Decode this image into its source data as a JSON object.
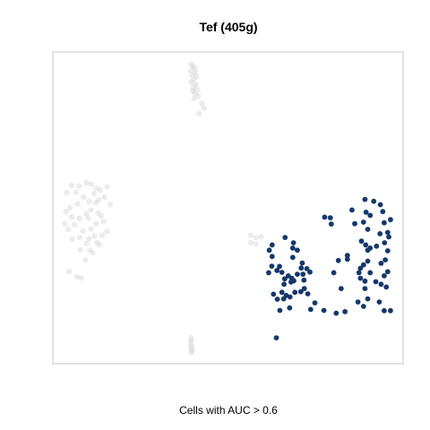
{
  "chart_data": {
    "type": "scatter",
    "title": "Tef (405g)",
    "xlabel": "Cells with AUC > 0.6",
    "ylabel": "",
    "axes_visible": false,
    "grid": false,
    "legend": "none",
    "xlim": [
      0,
      100
    ],
    "ylim": [
      0,
      100
    ],
    "highlight_color": "#15386b",
    "background_color": "#d4d4d4",
    "series": [
      {
        "role": "background",
        "points": [
          [
            39.5,
            96
          ],
          [
            40,
            95.5
          ],
          [
            40.5,
            94.8
          ],
          [
            39.3,
            94
          ],
          [
            40.7,
            93.5
          ],
          [
            39.8,
            92.5
          ],
          [
            41,
            92
          ],
          [
            40.2,
            91.2
          ],
          [
            39.6,
            90.3
          ],
          [
            40.8,
            89.6
          ],
          [
            40.1,
            88.6
          ],
          [
            41.2,
            88
          ],
          [
            39.9,
            87.5
          ],
          [
            40.6,
            86.6
          ],
          [
            41.5,
            85.8
          ],
          [
            40.3,
            85
          ],
          [
            42.5,
            83.5
          ],
          [
            43.2,
            82
          ],
          [
            41.8,
            80.2
          ],
          [
            5.4,
            57.2
          ],
          [
            7.5,
            57
          ],
          [
            9.6,
            58.1
          ],
          [
            11,
            57.6
          ],
          [
            12.6,
            56.3
          ],
          [
            15.5,
            56.8
          ],
          [
            13.5,
            55.6
          ],
          [
            6.6,
            55
          ],
          [
            11.8,
            54.6
          ],
          [
            4,
            54.8
          ],
          [
            8.8,
            53.5
          ],
          [
            14.7,
            53.5
          ],
          [
            13.1,
            52.6
          ],
          [
            10.4,
            52
          ],
          [
            12.3,
            51.7
          ],
          [
            16.4,
            51
          ],
          [
            7.1,
            51.2
          ],
          [
            4.9,
            50
          ],
          [
            3.8,
            48.8
          ],
          [
            10.9,
            49.3
          ],
          [
            9.6,
            48.1
          ],
          [
            12.9,
            48.3
          ],
          [
            13.8,
            47.4
          ],
          [
            5.4,
            47.1
          ],
          [
            10.1,
            46.7
          ],
          [
            7.6,
            46.6
          ],
          [
            14.4,
            45.6
          ],
          [
            3.4,
            44.9
          ],
          [
            6.2,
            44.6
          ],
          [
            12.3,
            44.9
          ],
          [
            10.9,
            43.3
          ],
          [
            8.6,
            42.6
          ],
          [
            4.4,
            43.1
          ],
          [
            15.5,
            42.5
          ],
          [
            14.1,
            41.2
          ],
          [
            11.9,
            41
          ],
          [
            7.6,
            40.5
          ],
          [
            10.3,
            40.1
          ],
          [
            5.5,
            40
          ],
          [
            9.6,
            38.6
          ],
          [
            12.6,
            38.8
          ],
          [
            13.4,
            38.1
          ],
          [
            7.8,
            36.5
          ],
          [
            10.6,
            36.4
          ],
          [
            11.4,
            35.6
          ],
          [
            9.3,
            33.3
          ],
          [
            4.6,
            29.5
          ],
          [
            6.9,
            27.9
          ],
          [
            8.1,
            27.5
          ],
          [
            56.5,
            41.2
          ],
          [
            58,
            40.5
          ],
          [
            59.5,
            40.8
          ],
          [
            56.5,
            38.8
          ],
          [
            58,
            38.4
          ],
          [
            39.4,
            8.3
          ],
          [
            39.6,
            7.5
          ],
          [
            39.3,
            6.5
          ],
          [
            39.7,
            5.6
          ],
          [
            39.4,
            4.9
          ],
          [
            39.8,
            4.2
          ],
          [
            39.5,
            3.6
          ]
        ]
      },
      {
        "role": "highlight",
        "points": [
          [
            93.5,
            51
          ],
          [
            94.2,
            48.8
          ],
          [
            96.4,
            46.2
          ],
          [
            94.6,
            45.2
          ],
          [
            95.6,
            42.1
          ],
          [
            93.4,
            41.7
          ],
          [
            95.9,
            40.7
          ],
          [
            94.7,
            38.8
          ],
          [
            95.6,
            36.2
          ],
          [
            92.4,
            37.7
          ],
          [
            94.9,
            33.3
          ],
          [
            93.7,
            32.2
          ],
          [
            95.6,
            29.5
          ],
          [
            94.6,
            28.2
          ],
          [
            92.2,
            26.3
          ],
          [
            93.7,
            25.5
          ],
          [
            95.2,
            24.6
          ],
          [
            94.6,
            17
          ],
          [
            96.4,
            17
          ],
          [
            93.2,
            19.8
          ],
          [
            89.1,
            52.7
          ],
          [
            91.6,
            52.1
          ],
          [
            89.4,
            48.6
          ],
          [
            90.6,
            47.6
          ],
          [
            88.7,
            45.4
          ],
          [
            89.9,
            43.1
          ],
          [
            88.1,
            39.3
          ],
          [
            89.3,
            38.1
          ],
          [
            90.6,
            37.1
          ],
          [
            89.9,
            36.4
          ],
          [
            89.9,
            32.9
          ],
          [
            88.7,
            31.7
          ],
          [
            87.8,
            30.6
          ],
          [
            87.4,
            29.2
          ],
          [
            90.6,
            29.2
          ],
          [
            87.8,
            27.4
          ],
          [
            89.1,
            26.5
          ],
          [
            89.1,
            24.1
          ],
          [
            89.9,
            20.8
          ],
          [
            88.7,
            18.4
          ],
          [
            87.1,
            19.8
          ],
          [
            86.2,
            44.9
          ],
          [
            85.4,
            49.3
          ],
          [
            84.1,
            34.7
          ],
          [
            84.1,
            33.5
          ],
          [
            77.6,
            47
          ],
          [
            79.2,
            46.8
          ],
          [
            79.5,
            44.8
          ],
          [
            81.5,
            33.1
          ],
          [
            80.2,
            29.2
          ],
          [
            82.3,
            24.1
          ],
          [
            80.9,
            16.2
          ],
          [
            77.4,
            17.1
          ],
          [
            83.4,
            16.7
          ],
          [
            62.6,
            38.1
          ],
          [
            61.8,
            36.4
          ],
          [
            62.6,
            34.4
          ],
          [
            62.5,
            31.3
          ],
          [
            61.6,
            29.2
          ],
          [
            66.3,
            40.5
          ],
          [
            68.7,
            38.8
          ],
          [
            68.5,
            37.1
          ],
          [
            69.8,
            36.4
          ],
          [
            68.5,
            34.1
          ],
          [
            71.2,
            32.3
          ],
          [
            70.9,
            30.7
          ],
          [
            69.8,
            28.7
          ],
          [
            68.2,
            27.4
          ],
          [
            67.2,
            28.2
          ],
          [
            64.7,
            31.2
          ],
          [
            64,
            29.9
          ],
          [
            65.4,
            29.3
          ],
          [
            66.2,
            27.2
          ],
          [
            68,
            26.2
          ],
          [
            68.8,
            26.6
          ],
          [
            72.5,
            30.5
          ],
          [
            73.4,
            29.4
          ],
          [
            71.4,
            28.7
          ],
          [
            71.7,
            26.8
          ],
          [
            71.8,
            24.1
          ],
          [
            70.8,
            23.1
          ],
          [
            72.8,
            22.4
          ],
          [
            74.8,
            19.5
          ],
          [
            73.6,
            17.4
          ],
          [
            69.1,
            22.9
          ],
          [
            67.7,
            21.4
          ],
          [
            66.6,
            21.9
          ],
          [
            65.4,
            22.9
          ],
          [
            64.1,
            20.7
          ],
          [
            63,
            22.3
          ],
          [
            65.9,
            20.8
          ],
          [
            67.6,
            17.9
          ],
          [
            64.8,
            17.1
          ],
          [
            63.8,
            8.3
          ],
          [
            66,
            25.5
          ]
        ]
      }
    ]
  }
}
